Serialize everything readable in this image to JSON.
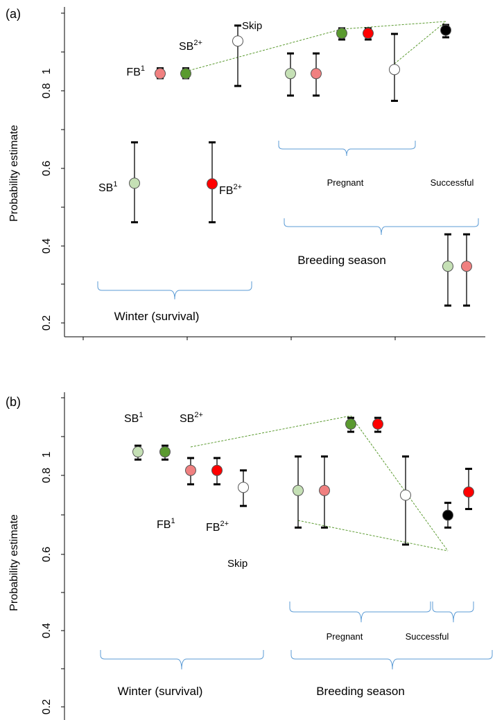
{
  "chart_data": [
    {
      "panel_label": "(a)",
      "type": "scatter",
      "ylabel": "Probability estimate",
      "yticks": [
        "0.2",
        "0.4",
        "0.6",
        "0.8",
        "1"
      ],
      "ylim": [
        0.2,
        1.2
      ],
      "points": [
        {
          "label": "FB",
          "sup": "1",
          "y": 1.005,
          "lo": 0.99,
          "hi": 1.022,
          "color": "#f08080"
        },
        {
          "label": "SB",
          "sup": "2+",
          "y": 1.005,
          "lo": 0.99,
          "hi": 1.022,
          "color": "#5a9a2f"
        },
        {
          "label": "Skip",
          "sup": "",
          "y": 1.11,
          "lo": 0.965,
          "hi": 1.16,
          "color": "#ffffff"
        },
        {
          "label": "SB",
          "sup": "1",
          "y": 0.651,
          "lo": 0.525,
          "hi": 0.783,
          "color": "#c5e0b5"
        },
        {
          "label": "FB",
          "sup": "2+",
          "y": 0.649,
          "lo": 0.525,
          "hi": 0.783,
          "color": "#ff0000"
        },
        {
          "label": "",
          "sup": "",
          "y": 1.005,
          "lo": 0.934,
          "hi": 1.07,
          "color": "#c5e0b5"
        },
        {
          "label": "",
          "sup": "",
          "y": 1.005,
          "lo": 0.934,
          "hi": 1.07,
          "color": "#f08080"
        },
        {
          "label": "",
          "sup": "",
          "y": 1.135,
          "lo": 1.115,
          "hi": 1.151,
          "color": "#5a9a2f"
        },
        {
          "label": "",
          "sup": "",
          "y": 1.135,
          "lo": 1.115,
          "hi": 1.151,
          "color": "#ff0000"
        },
        {
          "label": "",
          "sup": "",
          "y": 1.018,
          "lo": 0.917,
          "hi": 1.133,
          "color": "#ffffff"
        },
        {
          "label": "",
          "sup": "",
          "y": 1.145,
          "lo": 1.122,
          "hi": 1.162,
          "color": "#000000"
        },
        {
          "label": "",
          "sup": "",
          "y": 0.383,
          "lo": 0.256,
          "hi": 0.486,
          "color": "#c5e0b5"
        },
        {
          "label": "",
          "sup": "",
          "y": 0.383,
          "lo": 0.256,
          "hi": 0.486,
          "color": "#f08080"
        }
      ],
      "annotations": [
        "Pregnant",
        "Successful",
        "Breeding season",
        "Winter (survival)"
      ]
    },
    {
      "panel_label": "(b)",
      "type": "scatter",
      "ylabel": "Probability estimate",
      "yticks": [
        "0.2",
        "0.4",
        "0.6",
        "0.8",
        "1"
      ],
      "ylim": [
        0.2,
        1.2
      ],
      "points": [
        {
          "label": "SB",
          "sup": "1",
          "y": 1.025,
          "lo": 1.0,
          "hi": 1.045,
          "color": "#c5e0b5"
        },
        {
          "label": "FB",
          "sup": "1",
          "y": 0.965,
          "lo": 0.92,
          "hi": 1.005,
          "color": "#f08080"
        },
        {
          "label": "SB",
          "sup": "2+",
          "y": 1.025,
          "lo": 1.0,
          "hi": 1.045,
          "color": "#5a9a2f"
        },
        {
          "label": "FB",
          "sup": "2+",
          "y": 0.965,
          "lo": 0.92,
          "hi": 1.005,
          "color": "#ff0000"
        },
        {
          "label": "Skip",
          "sup": "",
          "y": 0.91,
          "lo": 0.85,
          "hi": 0.965,
          "color": "#ffffff"
        },
        {
          "label": "",
          "sup": "",
          "y": 0.9,
          "lo": 0.78,
          "hi": 1.01,
          "color": "#c5e0b5"
        },
        {
          "label": "",
          "sup": "",
          "y": 0.9,
          "lo": 0.78,
          "hi": 1.01,
          "color": "#f08080"
        },
        {
          "label": "",
          "sup": "",
          "y": 1.115,
          "lo": 1.09,
          "hi": 1.135,
          "color": "#5a9a2f"
        },
        {
          "label": "",
          "sup": "",
          "y": 1.115,
          "lo": 1.09,
          "hi": 1.135,
          "color": "#ff0000"
        },
        {
          "label": "",
          "sup": "",
          "y": 0.885,
          "lo": 0.725,
          "hi": 1.01,
          "color": "#ffffff"
        },
        {
          "label": "",
          "sup": "",
          "y": 0.82,
          "lo": 0.78,
          "hi": 0.86,
          "color": "#000000"
        },
        {
          "label": "",
          "sup": "",
          "y": 0.895,
          "lo": 0.84,
          "hi": 0.97,
          "color": "#ff0000"
        }
      ],
      "annotations": [
        "Pregnant",
        "Successful",
        "Winter (survival)",
        "Breeding season"
      ]
    }
  ]
}
